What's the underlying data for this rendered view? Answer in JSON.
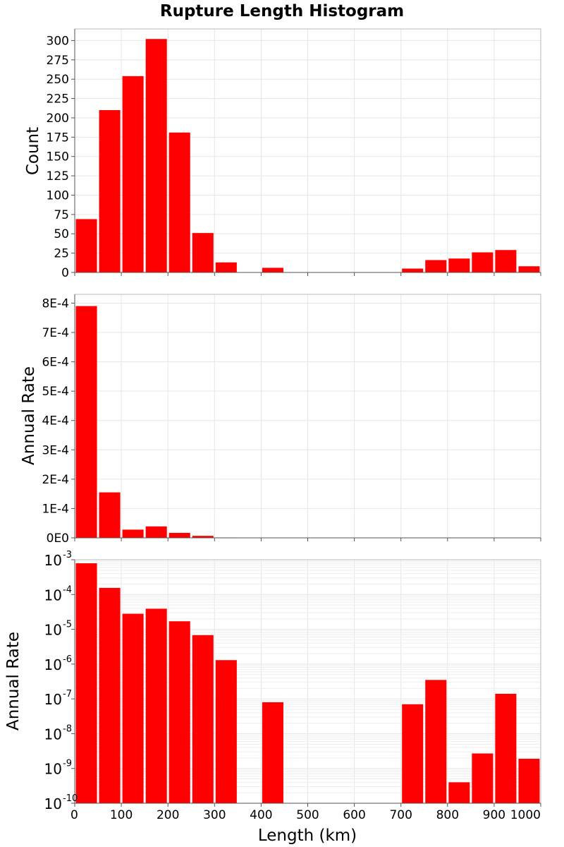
{
  "chart_data": {
    "type": "bar",
    "title": "Rupture Length Histogram",
    "xlabel": "Length (km)",
    "xlim": [
      0,
      1000
    ],
    "x_ticks": [
      "0",
      "100",
      "200",
      "300",
      "400",
      "500",
      "600",
      "700",
      "800",
      "900",
      "1000"
    ],
    "bin_width": 50,
    "bin_starts": [
      0,
      50,
      100,
      150,
      200,
      250,
      300,
      350,
      400,
      450,
      500,
      550,
      600,
      650,
      700,
      750,
      800,
      850,
      900,
      950
    ],
    "bar_color": "#ff0000",
    "panels": [
      {
        "id": "count",
        "ylabel": "Count",
        "yscale": "linear",
        "ylim": [
          0,
          315
        ],
        "y_ticks": [
          {
            "value": 0,
            "label": "0"
          },
          {
            "value": 25,
            "label": "25"
          },
          {
            "value": 50,
            "label": "50"
          },
          {
            "value": 75,
            "label": "75"
          },
          {
            "value": 100,
            "label": "100"
          },
          {
            "value": 125,
            "label": "125"
          },
          {
            "value": 150,
            "label": "150"
          },
          {
            "value": 175,
            "label": "175"
          },
          {
            "value": 200,
            "label": "200"
          },
          {
            "value": 225,
            "label": "225"
          },
          {
            "value": 250,
            "label": "250"
          },
          {
            "value": 275,
            "label": "275"
          },
          {
            "value": 300,
            "label": "300"
          }
        ],
        "values": [
          69,
          210,
          254,
          302,
          181,
          51,
          13,
          0,
          6,
          0,
          0,
          0,
          0,
          0,
          5,
          16,
          18,
          26,
          29,
          8
        ]
      },
      {
        "id": "rate-linear",
        "ylabel": "Annual Rate",
        "yscale": "linear",
        "ylim": [
          0,
          0.00083
        ],
        "y_ticks": [
          {
            "value": 0,
            "label": "0E0"
          },
          {
            "value": 0.0001,
            "label": "1E-4"
          },
          {
            "value": 0.0002,
            "label": "2E-4"
          },
          {
            "value": 0.0003,
            "label": "3E-4"
          },
          {
            "value": 0.0004,
            "label": "4E-4"
          },
          {
            "value": 0.0005,
            "label": "5E-4"
          },
          {
            "value": 0.0006,
            "label": "6E-4"
          },
          {
            "value": 0.0007,
            "label": "7E-4"
          },
          {
            "value": 0.0008,
            "label": "8E-4"
          }
        ],
        "values": [
          0.00079,
          0.000155,
          2.8e-05,
          3.9e-05,
          1.7e-05,
          6.8e-06,
          1.3e-06,
          0,
          8e-08,
          0,
          0,
          0,
          0,
          0,
          7e-08,
          3.5e-07,
          4e-10,
          2.7e-09,
          1.4e-07,
          1.9e-09
        ]
      },
      {
        "id": "rate-log",
        "ylabel": "Annual Rate",
        "yscale": "log",
        "ylim": [
          1e-10,
          0.001
        ],
        "y_ticks": [
          {
            "value": 1e-10,
            "base": "10",
            "exp": "-10"
          },
          {
            "value": 1e-09,
            "base": "10",
            "exp": "-9"
          },
          {
            "value": 1e-08,
            "base": "10",
            "exp": "-8"
          },
          {
            "value": 1e-07,
            "base": "10",
            "exp": "-7"
          },
          {
            "value": 1e-06,
            "base": "10",
            "exp": "-6"
          },
          {
            "value": 1e-05,
            "base": "10",
            "exp": "-5"
          },
          {
            "value": 0.0001,
            "base": "10",
            "exp": "-4"
          },
          {
            "value": 0.001,
            "base": "10",
            "exp": "-3"
          }
        ],
        "values": [
          0.00079,
          0.000155,
          2.8e-05,
          3.9e-05,
          1.7e-05,
          6.8e-06,
          1.3e-06,
          0,
          8e-08,
          0,
          0,
          0,
          0,
          0,
          7e-08,
          3.5e-07,
          4e-10,
          2.7e-09,
          1.4e-07,
          1.9e-09
        ]
      }
    ]
  }
}
